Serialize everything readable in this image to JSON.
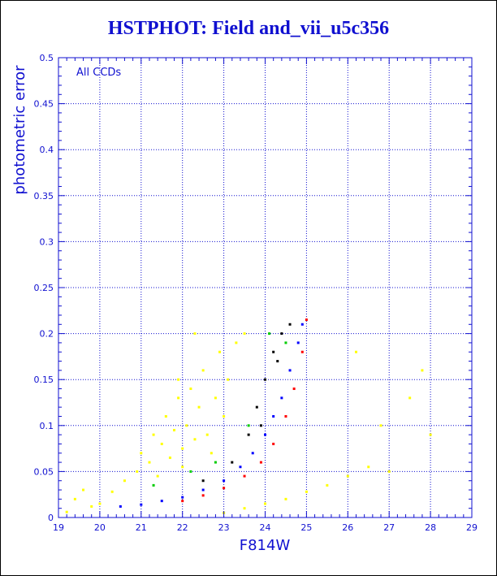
{
  "chart_data": {
    "type": "scatter",
    "title": "HSTPHOT: Field and_vii_u5c356",
    "xlabel": "F814W",
    "ylabel": "photometric error",
    "annotation": "All CCDs",
    "xlim": [
      19,
      29
    ],
    "ylim": [
      0,
      0.5
    ],
    "x_ticks": [
      "19",
      "20",
      "21",
      "22",
      "23",
      "24",
      "25",
      "26",
      "27",
      "28",
      "29"
    ],
    "y_ticks": [
      "0",
      "0.05",
      "0.1",
      "0.15",
      "0.2",
      "0.25",
      "0.3",
      "0.35",
      "0.4",
      "0.45",
      "0.5"
    ],
    "grid": true,
    "colors": {
      "axis": "#1010d0",
      "yellow": "#ffff00",
      "blue": "#0000ff",
      "red": "#ff0000",
      "black": "#000000",
      "green": "#00cc00"
    },
    "series": [
      {
        "color": "#ffff00",
        "points": [
          [
            19.2,
            0.006
          ],
          [
            19.4,
            0.02
          ],
          [
            19.6,
            0.03
          ],
          [
            19.8,
            0.012
          ],
          [
            20.0,
            0.015
          ],
          [
            20.3,
            0.028
          ],
          [
            20.6,
            0.04
          ],
          [
            20.9,
            0.05
          ],
          [
            21.0,
            0.07
          ],
          [
            21.2,
            0.06
          ],
          [
            21.3,
            0.09
          ],
          [
            21.5,
            0.08
          ],
          [
            21.6,
            0.11
          ],
          [
            21.7,
            0.065
          ],
          [
            21.8,
            0.095
          ],
          [
            21.9,
            0.13
          ],
          [
            22.0,
            0.075
          ],
          [
            22.1,
            0.1
          ],
          [
            22.2,
            0.14
          ],
          [
            22.3,
            0.085
          ],
          [
            22.4,
            0.12
          ],
          [
            22.5,
            0.16
          ],
          [
            22.6,
            0.09
          ],
          [
            22.7,
            0.07
          ],
          [
            22.8,
            0.13
          ],
          [
            22.9,
            0.18
          ],
          [
            23.0,
            0.11
          ],
          [
            23.1,
            0.15
          ],
          [
            23.3,
            0.19
          ],
          [
            23.5,
            0.2
          ],
          [
            22.0,
            0.055
          ],
          [
            21.4,
            0.045
          ],
          [
            22.3,
            0.2
          ],
          [
            21.9,
            0.15
          ],
          [
            23.0,
            0.005
          ],
          [
            23.5,
            0.01
          ],
          [
            24.0,
            0.015
          ],
          [
            24.5,
            0.02
          ],
          [
            25.0,
            0.028
          ],
          [
            25.5,
            0.035
          ],
          [
            26.0,
            0.045
          ],
          [
            26.5,
            0.055
          ],
          [
            27.0,
            0.05
          ],
          [
            26.8,
            0.1
          ],
          [
            27.5,
            0.13
          ],
          [
            28.0,
            0.09
          ],
          [
            26.2,
            0.18
          ],
          [
            27.8,
            0.16
          ]
        ]
      },
      {
        "color": "#0000ff",
        "points": [
          [
            20.5,
            0.012
          ],
          [
            21.0,
            0.014
          ],
          [
            21.5,
            0.018
          ],
          [
            22.0,
            0.022
          ],
          [
            22.5,
            0.03
          ],
          [
            23.0,
            0.04
          ],
          [
            23.4,
            0.055
          ],
          [
            23.7,
            0.07
          ],
          [
            24.0,
            0.09
          ],
          [
            24.2,
            0.11
          ],
          [
            24.4,
            0.13
          ],
          [
            24.6,
            0.16
          ],
          [
            24.8,
            0.19
          ],
          [
            24.9,
            0.21
          ]
        ]
      },
      {
        "color": "#ff0000",
        "points": [
          [
            22.0,
            0.018
          ],
          [
            22.5,
            0.024
          ],
          [
            23.0,
            0.032
          ],
          [
            23.5,
            0.045
          ],
          [
            23.9,
            0.06
          ],
          [
            24.2,
            0.08
          ],
          [
            24.5,
            0.11
          ],
          [
            24.7,
            0.14
          ],
          [
            24.9,
            0.18
          ],
          [
            25.0,
            0.215
          ]
        ]
      },
      {
        "color": "#000000",
        "points": [
          [
            22.5,
            0.04
          ],
          [
            23.2,
            0.06
          ],
          [
            23.6,
            0.09
          ],
          [
            23.8,
            0.12
          ],
          [
            24.0,
            0.15
          ],
          [
            24.2,
            0.18
          ],
          [
            24.4,
            0.2
          ],
          [
            24.6,
            0.21
          ],
          [
            23.9,
            0.1
          ],
          [
            24.3,
            0.17
          ]
        ]
      },
      {
        "color": "#00cc00",
        "points": [
          [
            21.3,
            0.035
          ],
          [
            22.8,
            0.06
          ],
          [
            23.6,
            0.1
          ],
          [
            24.1,
            0.2
          ],
          [
            24.5,
            0.19
          ],
          [
            22.2,
            0.05
          ]
        ]
      }
    ]
  }
}
